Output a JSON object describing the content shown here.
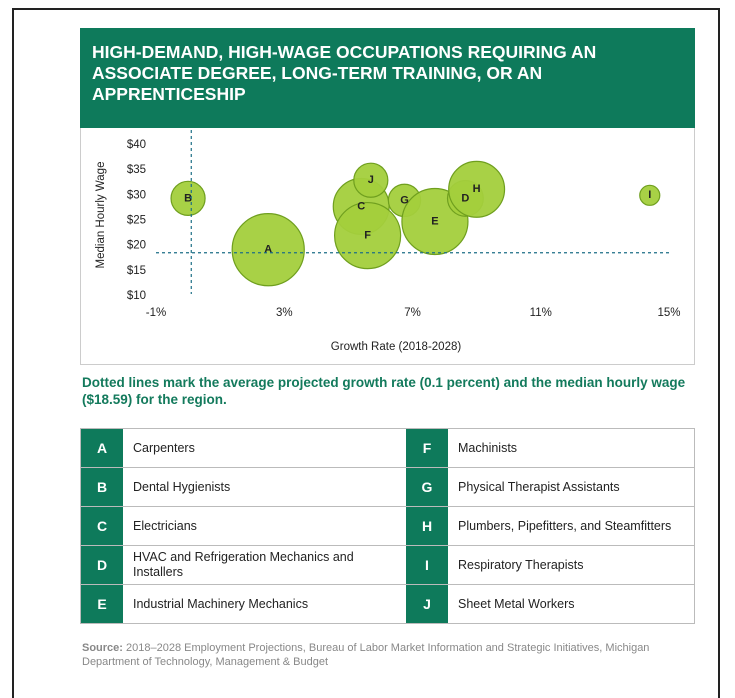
{
  "chart_data": {
    "type": "bubble",
    "title": "HIGH-DEMAND, HIGH-WAGE OCCUPATIONS REQUIRING AN ASSOCIATE DEGREE, LONG-TERM TRAINING, OR AN APPRENTICESHIP",
    "xlabel": "Growth Rate (2018-2028)",
    "ylabel": "Median Hourly Wage",
    "labels": [
      "A",
      "B",
      "C",
      "J",
      "F",
      "G",
      "E",
      "D",
      "H",
      "I"
    ],
    "x": [
      2.5,
      0.0,
      5.4,
      5.7,
      5.6,
      6.75,
      7.7,
      8.65,
      9.0,
      14.4
    ],
    "values": [
      19.2,
      29.4,
      27.8,
      33,
      22,
      29,
      24.8,
      29.4,
      31.2,
      30
    ],
    "sizes": [
      1300,
      290,
      780,
      290,
      1090,
      260,
      1090,
      320,
      780,
      100
    ],
    "color": "#a3cf3c",
    "xlim": [
      -1,
      15
    ],
    "xticks": [
      {
        "value": -1,
        "label": "-1%"
      },
      {
        "value": 3,
        "label": "3%"
      },
      {
        "value": 7,
        "label": "7%"
      },
      {
        "value": 11,
        "label": "11%"
      },
      {
        "value": 15,
        "label": "15%"
      }
    ],
    "ylim": [
      10,
      40
    ],
    "yticks": [
      {
        "value": 10,
        "label": "$10"
      },
      {
        "value": 15,
        "label": "$15"
      },
      {
        "value": 20,
        "label": "$20"
      },
      {
        "value": 25,
        "label": "$25"
      },
      {
        "value": 30,
        "label": "$30"
      },
      {
        "value": 35,
        "label": "$35"
      },
      {
        "value": 40,
        "label": "$40"
      }
    ],
    "reference_lines": {
      "x": 0.1,
      "y": 18.59
    }
  },
  "note": "Dotted lines mark the average projected growth rate (0.1 percent) and the median hourly wage ($18.59) for the region.",
  "legend_table": [
    {
      "letter": "A",
      "name": "Carpenters"
    },
    {
      "letter": "B",
      "name": "Dental Hygienists"
    },
    {
      "letter": "C",
      "name": "Electricians"
    },
    {
      "letter": "D",
      "name": "HVAC and Refrigeration Mechanics and Installers"
    },
    {
      "letter": "E",
      "name": "Industrial Machinery Mechanics"
    },
    {
      "letter": "F",
      "name": "Machinists"
    },
    {
      "letter": "G",
      "name": "Physical Therapist Assistants"
    },
    {
      "letter": "H",
      "name": "Plumbers, Pipefitters, and Steamfitters"
    },
    {
      "letter": "I",
      "name": "Respiratory Therapists"
    },
    {
      "letter": "J",
      "name": "Sheet Metal Workers"
    }
  ],
  "source_label": "Source:",
  "source": "2018–2028 Employment Projections, Bureau of Labor Market Information and Strategic Initiatives, Michigan Department of Technology, Management & Budget"
}
